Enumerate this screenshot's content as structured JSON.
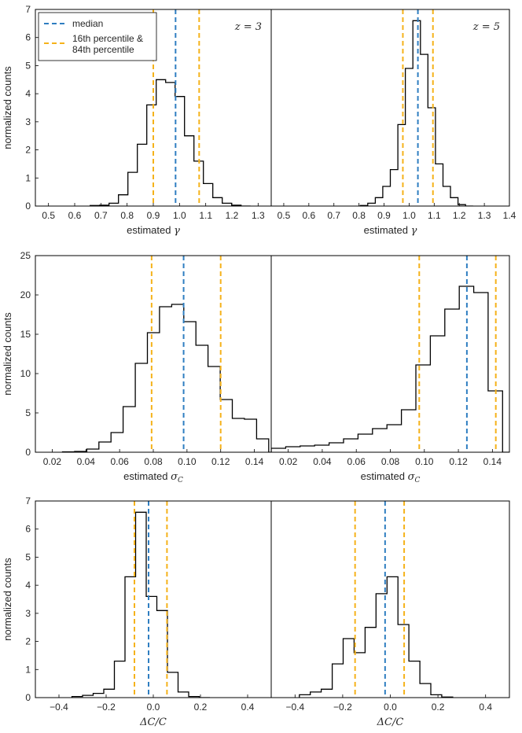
{
  "colors": {
    "median": "#2f7ec1",
    "percentile": "#f5b21a",
    "hist": "#000000"
  },
  "legend": {
    "median_label": "median",
    "percentile_label_line1": "16th percentile &",
    "percentile_label_line2": "84th percentile",
    "location": "top-left of first panel"
  },
  "chart_data": [
    {
      "type": "histogram",
      "row": 0,
      "col": 0,
      "annotation": "z = 3",
      "xlabel": "estimated γ",
      "ylabel": "normalized counts",
      "xlim": [
        0.45,
        1.35
      ],
      "ylim": [
        0,
        7
      ],
      "xticks": [
        "0.5",
        "0.6",
        "0.7",
        "0.8",
        "0.9",
        "1.0",
        "1.1",
        "1.2",
        "1.3"
      ],
      "yticks": [
        "0",
        "1",
        "2",
        "3",
        "4",
        "5",
        "6",
        "7"
      ],
      "bin_edges": [
        0.659,
        0.695,
        0.731,
        0.767,
        0.803,
        0.839,
        0.875,
        0.911,
        0.947,
        0.983,
        1.019,
        1.055,
        1.091,
        1.127,
        1.163,
        1.199,
        1.235,
        1.271
      ],
      "counts": [
        0.02,
        0.03,
        0.1,
        0.4,
        1.2,
        2.2,
        3.6,
        4.5,
        4.4,
        3.9,
        2.5,
        1.6,
        0.8,
        0.3,
        0.1,
        0.03,
        0.0
      ],
      "median": 0.985,
      "p16": 0.9,
      "p84": 1.075
    },
    {
      "type": "histogram",
      "row": 0,
      "col": 1,
      "annotation": "z = 5",
      "xlabel": "estimated γ",
      "ylabel": "",
      "xlim": [
        0.45,
        1.4
      ],
      "ylim": [
        0,
        7
      ],
      "xticks": [
        "0.5",
        "0.6",
        "0.7",
        "0.8",
        "0.9",
        "1.0",
        "1.1",
        "1.2",
        "1.3",
        "1.4"
      ],
      "yticks": [],
      "bin_edges": [
        0.805,
        0.835,
        0.865,
        0.895,
        0.925,
        0.955,
        0.985,
        1.015,
        1.045,
        1.075,
        1.105,
        1.135,
        1.165,
        1.195,
        1.225,
        1.255
      ],
      "counts": [
        0.02,
        0.1,
        0.3,
        0.7,
        1.3,
        2.9,
        4.9,
        6.6,
        5.4,
        3.5,
        1.5,
        0.7,
        0.3,
        0.05,
        0.0
      ],
      "median": 1.035,
      "p16": 0.975,
      "p84": 1.095
    },
    {
      "type": "histogram",
      "row": 1,
      "col": 0,
      "annotation": "",
      "xlabel": "estimated σ_C",
      "ylabel": "normalized counts",
      "xlim": [
        0.01,
        0.15
      ],
      "ylim": [
        0,
        25
      ],
      "xticks": [
        "0.02",
        "0.04",
        "0.06",
        "0.08",
        "0.10",
        "0.12",
        "0.14"
      ],
      "yticks": [
        "0",
        "5",
        "10",
        "15",
        "20",
        "25"
      ],
      "bin_edges": [
        0.0261,
        0.0333,
        0.0405,
        0.0477,
        0.0549,
        0.0621,
        0.0693,
        0.0765,
        0.0837,
        0.0909,
        0.0981,
        0.1053,
        0.1125,
        0.1197,
        0.1269,
        0.1341,
        0.1413,
        0.1485,
        0.155
      ],
      "counts": [
        0.05,
        0.1,
        0.4,
        1.3,
        2.5,
        5.8,
        11.3,
        15.2,
        18.5,
        18.8,
        16.6,
        13.6,
        10.9,
        6.7,
        4.3,
        4.2,
        1.7,
        0.0
      ],
      "median": 0.098,
      "p16": 0.079,
      "p84": 0.12
    },
    {
      "type": "histogram",
      "row": 1,
      "col": 1,
      "annotation": "",
      "xlabel": "estimated σ_C",
      "ylabel": "",
      "xlim": [
        0.01,
        0.15
      ],
      "ylim": [
        0,
        25
      ],
      "xticks": [
        "0.02",
        "0.04",
        "0.06",
        "0.08",
        "0.10",
        "0.12",
        "0.14"
      ],
      "yticks": [],
      "bin_edges": [
        0.01,
        0.0185,
        0.027,
        0.0355,
        0.044,
        0.0525,
        0.061,
        0.0695,
        0.078,
        0.0865,
        0.095,
        0.1035,
        0.112,
        0.1205,
        0.129,
        0.1375,
        0.146,
        0.15
      ],
      "counts": [
        0.5,
        0.7,
        0.8,
        0.9,
        1.2,
        1.7,
        2.3,
        3.0,
        3.5,
        5.4,
        11.1,
        14.8,
        18.2,
        21.1,
        20.3,
        7.8,
        0.0
      ],
      "median": 0.125,
      "p16": 0.097,
      "p84": 0.142
    },
    {
      "type": "histogram",
      "row": 2,
      "col": 0,
      "annotation": "",
      "xlabel": "ΔC/C",
      "ylabel": "normalized counts",
      "xlim": [
        -0.5,
        0.5
      ],
      "ylim": [
        0,
        7
      ],
      "xticks": [
        "−0.4",
        "−0.2",
        "0.0",
        "0.2",
        "0.4"
      ],
      "yticks": [
        "0",
        "1",
        "2",
        "3",
        "4",
        "5",
        "6",
        "7"
      ],
      "bin_edges": [
        -0.345,
        -0.3,
        -0.255,
        -0.21,
        -0.165,
        -0.12,
        -0.075,
        -0.03,
        0.015,
        0.06,
        0.105,
        0.15,
        0.195,
        0.24
      ],
      "counts": [
        0.04,
        0.08,
        0.15,
        0.3,
        1.3,
        4.3,
        6.6,
        3.6,
        3.1,
        0.9,
        0.2,
        0.04,
        0.0
      ],
      "median": -0.02,
      "p16": -0.08,
      "p84": 0.058
    },
    {
      "type": "histogram",
      "row": 2,
      "col": 1,
      "annotation": "",
      "xlabel": "ΔC/C",
      "ylabel": "",
      "xlim": [
        -0.5,
        0.5
      ],
      "ylim": [
        0,
        7
      ],
      "xticks": [
        "−0.4",
        "−0.2",
        "0.0",
        "0.2",
        "0.4"
      ],
      "yticks": [],
      "bin_edges": [
        -0.382,
        -0.336,
        -0.29,
        -0.244,
        -0.198,
        -0.152,
        -0.106,
        -0.06,
        -0.014,
        0.032,
        0.078,
        0.124,
        0.17,
        0.216,
        0.262
      ],
      "counts": [
        0.1,
        0.2,
        0.3,
        1.2,
        2.1,
        1.6,
        2.5,
        3.7,
        4.3,
        2.6,
        1.3,
        0.5,
        0.1,
        0.02
      ],
      "median": -0.022,
      "p16": -0.148,
      "p84": 0.058
    }
  ]
}
